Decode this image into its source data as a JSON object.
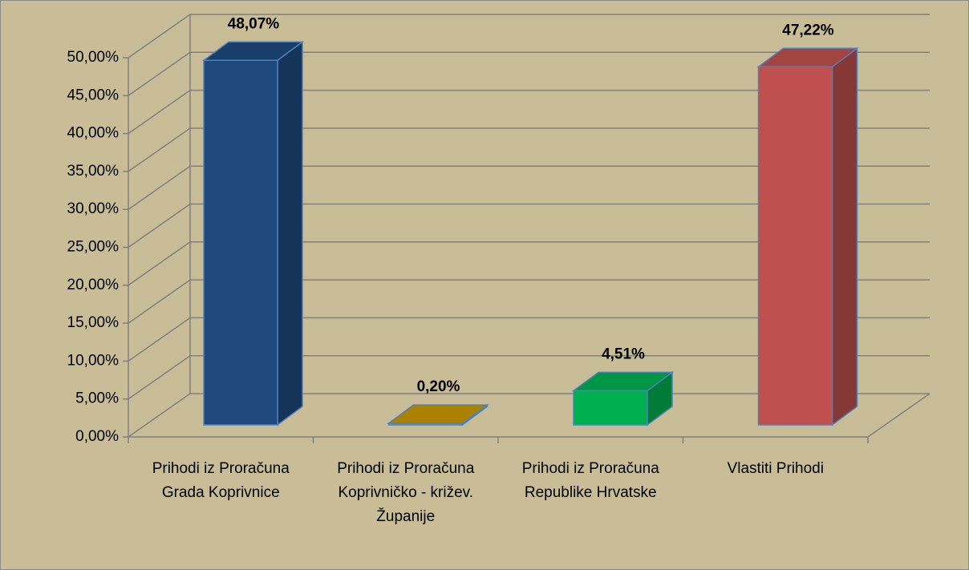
{
  "chart_data": {
    "type": "bar3d",
    "categories": [
      "Prihodi iz Proračuna Grada Koprivnice",
      "Prihodi iz Proračuna Koprivničko - križev. Županije",
      "Prihodi iz Proračuna Republike Hrvatske",
      "Vlastiti Prihodi"
    ],
    "values": [
      48.07,
      0.2,
      4.51,
      47.22
    ],
    "value_labels": [
      "48,07%",
      "0,20%",
      "4,51%",
      "47,22%"
    ],
    "colors": [
      "#1f497d",
      "#c89800",
      "#00b050",
      "#c0504d"
    ],
    "ylim": [
      0,
      50
    ],
    "yticks": [
      {
        "value": 0,
        "label": "0,00%"
      },
      {
        "value": 5,
        "label": "5,00%"
      },
      {
        "value": 10,
        "label": "10,00%"
      },
      {
        "value": 15,
        "label": "15,00%"
      },
      {
        "value": 20,
        "label": "20,00%"
      },
      {
        "value": 25,
        "label": "25,00%"
      },
      {
        "value": 30,
        "label": "30,00%"
      },
      {
        "value": 35,
        "label": "35,00%"
      },
      {
        "value": 40,
        "label": "40,00%"
      },
      {
        "value": 45,
        "label": "45,00%"
      },
      {
        "value": 50,
        "label": "50,00%"
      }
    ],
    "grid": true
  }
}
